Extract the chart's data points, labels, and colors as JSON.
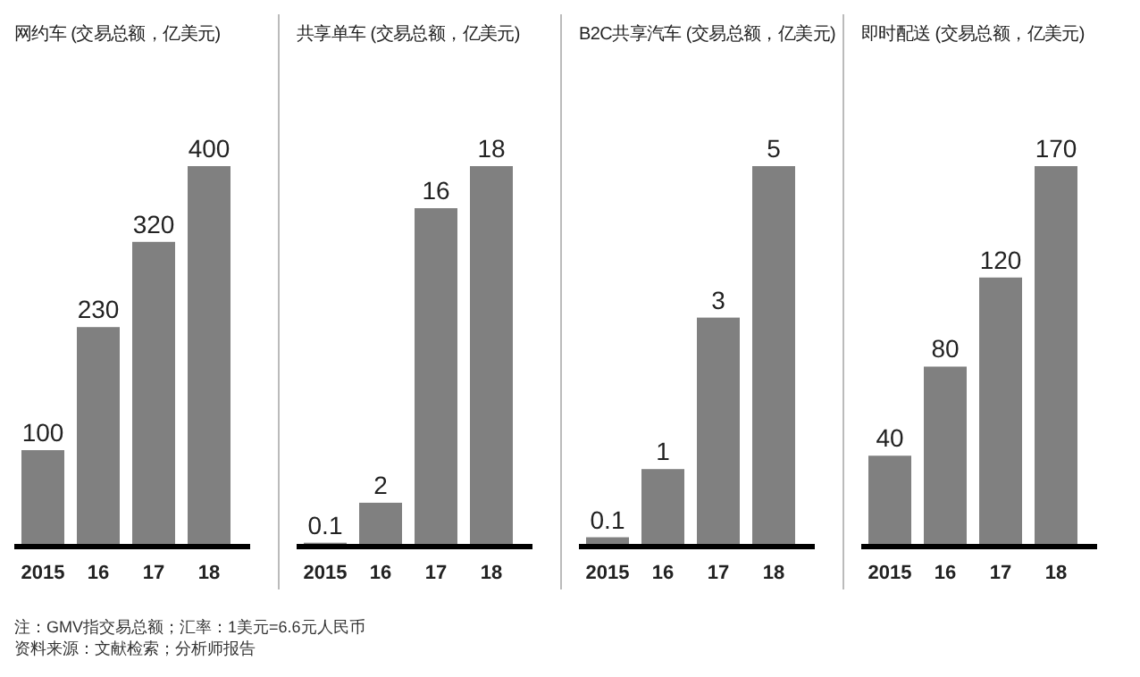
{
  "chart_data": [
    {
      "type": "bar",
      "title": "网约车 (交易总额，亿美元)",
      "categories": [
        "2015",
        "16",
        "17",
        "18"
      ],
      "values": [
        100,
        230,
        320,
        400
      ],
      "color": "#808080",
      "data_labels": true,
      "annotations": [
        "注：GMV指交易总额；汇率：1美元=6.6元人民币",
        "资料来源：文献检索；分析师报告"
      ]
    },
    {
      "type": "bar",
      "title": "共享单车 (交易总额，亿美元)",
      "categories": [
        "2015",
        "16",
        "17",
        "18"
      ],
      "values": [
        0.1,
        2,
        16,
        18
      ],
      "color": "#808080",
      "data_labels": true
    },
    {
      "type": "bar",
      "title": "B2C共享汽车 (交易总额，亿美元)",
      "categories": [
        "2015",
        "16",
        "17",
        "18"
      ],
      "values": [
        0.1,
        1,
        3,
        5
      ],
      "color": "#808080",
      "data_labels": true
    },
    {
      "type": "bar",
      "title": "即时配送 (交易总额，亿美元)",
      "categories": [
        "2015",
        "16",
        "17",
        "18"
      ],
      "values": [
        40,
        80,
        120,
        170
      ],
      "color": "#808080",
      "data_labels": true
    }
  ]
}
